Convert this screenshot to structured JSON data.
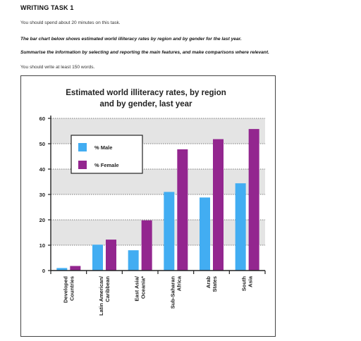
{
  "task": {
    "heading": "WRITING TASK 1",
    "time_note": "You should spend about 20 minutes on this task.",
    "prompt": "The bar chart below shows estimated world illiteracy rates by region and by gender for the last year.",
    "instruction": "Summarise the information by selecting and reporting the main features, and make comparisons where relevant.",
    "word_note": "You should write at least 150 words."
  },
  "colors": {
    "male": "#42adf2",
    "female": "#93268f",
    "band": "#e4e4e4",
    "axis": "#222222"
  },
  "chart_data": {
    "type": "bar",
    "title": "Estimated world illiteracy rates, by region and by gender, last year",
    "title_lines": [
      "Estimated world illiteracy rates, by region",
      "and by gender, last year"
    ],
    "xlabel": "",
    "ylabel": "",
    "ylim": [
      0,
      60
    ],
    "yticks": [
      0,
      10,
      20,
      30,
      40,
      50,
      60
    ],
    "grid": "dotted horizontal lines with alternating shaded bands",
    "legend_placement": "top-left",
    "categories": [
      [
        "Developed",
        "Countries"
      ],
      [
        "Latin American/",
        "Caribbean"
      ],
      [
        "East Asia/",
        "Oceania*"
      ],
      [
        "Sub-Saharan",
        "Africa"
      ],
      [
        "Arab",
        "States"
      ],
      [
        "South",
        "Asia"
      ]
    ],
    "series": [
      {
        "name": "% Male",
        "values": [
          1,
          10.2,
          8,
          31,
          28.8,
          34.4
        ]
      },
      {
        "name": "% Female",
        "values": [
          1.8,
          12.2,
          19.8,
          47.8,
          51.8,
          55.8
        ]
      }
    ]
  }
}
